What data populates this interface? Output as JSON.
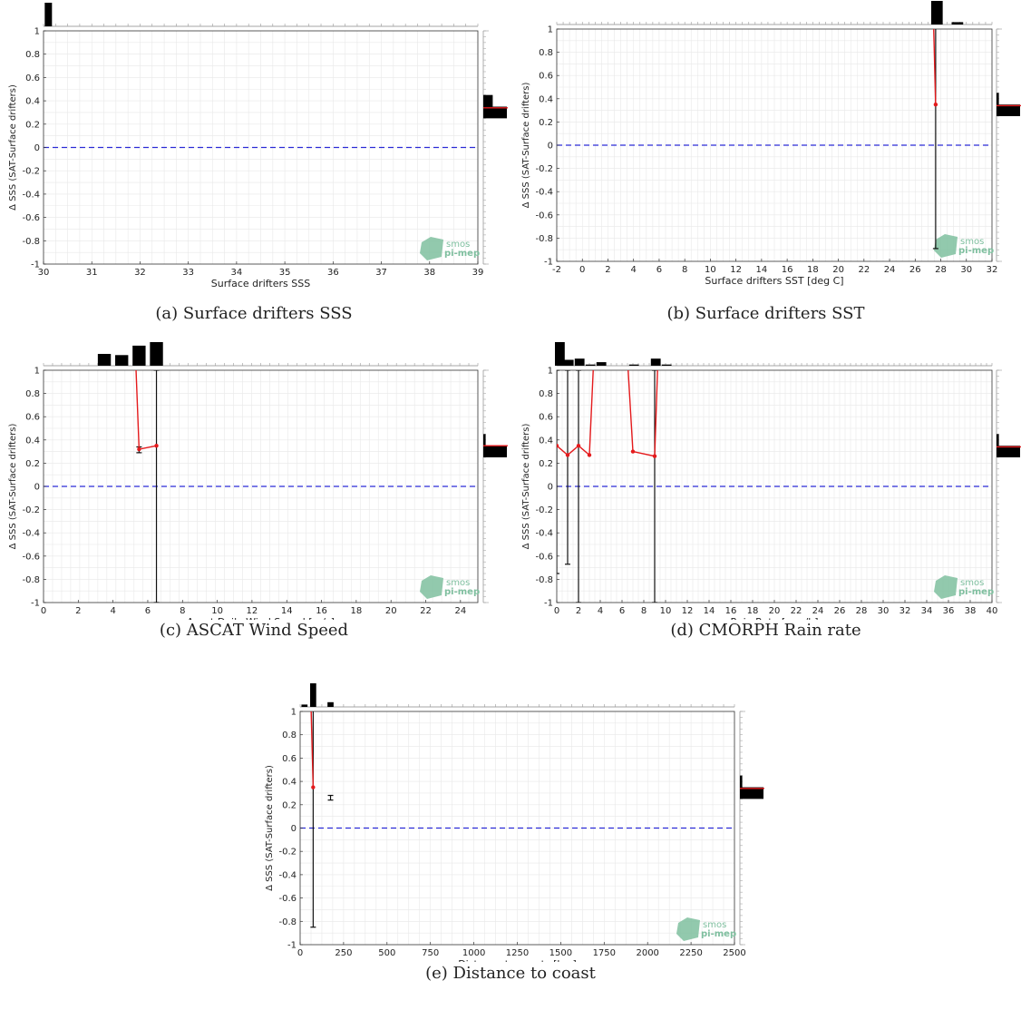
{
  "y_axis_label": "Δ SSS (SAT-Surface drifters)",
  "logo": {
    "line1": "smos",
    "line2": "pi-mep"
  },
  "colors": {
    "mean_line": "#e41a1c",
    "zero_line": "#2b2bd6",
    "errorbar": "#111111",
    "bars": "#000000",
    "grid": "#e8e8e8",
    "logo": "#7fbf9f"
  },
  "captions": [
    "(a) Surface drifters SSS",
    "(b) Surface drifters SST",
    "(c) ASCAT Wind Speed",
    "(d) CMORPH Rain rate",
    "(e) Distance to coast"
  ],
  "chart_data": [
    {
      "id": "a",
      "type": "line",
      "xlabel": "Surface drifters SSS",
      "ylabel": "Δ SSS (SAT-Surface drifters)",
      "xlim": [
        30,
        39
      ],
      "ylim": [
        -1,
        1
      ],
      "xticks": [
        30,
        31,
        32,
        33,
        34,
        35,
        36,
        37,
        38,
        39
      ],
      "yticks": [
        -1,
        -0.8,
        -0.6,
        -0.4,
        -0.2,
        0,
        0.2,
        0.4,
        0.6,
        0.8,
        1
      ],
      "grid": true,
      "zero_line": 0,
      "series": [
        {
          "role": "mean",
          "x": [],
          "y": []
        }
      ],
      "errorbars": [],
      "histogram_top": {
        "x": [
          30.1
        ],
        "height": [
          1.0
        ],
        "width": 0.15
      },
      "histogram_right": [
        {
          "y": 0.4,
          "h": 0.4
        },
        {
          "y": 0.3,
          "h": 1.0
        }
      ],
      "right_mean_line": 0.34
    },
    {
      "id": "b",
      "type": "line",
      "xlabel": "Surface drifters SST [deg C]",
      "ylabel": "Δ SSS (SAT-Surface drifters)",
      "xlim": [
        -2,
        32
      ],
      "ylim": [
        -1,
        1
      ],
      "xticks": [
        -2,
        0,
        2,
        4,
        6,
        8,
        10,
        12,
        14,
        16,
        18,
        20,
        22,
        24,
        26,
        28,
        30,
        32
      ],
      "yticks": [
        -1,
        -0.8,
        -0.6,
        -0.4,
        -0.2,
        0,
        0.2,
        0.4,
        0.6,
        0.8,
        1
      ],
      "grid": true,
      "zero_line": 0,
      "series": [
        {
          "role": "mean",
          "x": [
            27.4,
            27.6
          ],
          "y": [
            1.2,
            0.35
          ]
        }
      ],
      "errorbars": [
        {
          "x": 27.6,
          "low": -0.89,
          "high": 1.2
        }
      ],
      "histogram_top": {
        "x": [
          27.7,
          29.3
        ],
        "height": [
          1.0,
          0.1
        ],
        "width": 0.9
      },
      "histogram_right": [
        {
          "y": 0.4,
          "h": 0.1
        },
        {
          "y": 0.3,
          "h": 1.0
        }
      ],
      "right_mean_line": 0.34
    },
    {
      "id": "c",
      "type": "line",
      "xlabel": "Ascat Daily Wind Speed [m/s]",
      "ylabel": "Δ SSS (SAT-Surface drifters)",
      "xlim": [
        0,
        25
      ],
      "ylim": [
        -1,
        1
      ],
      "xticks": [
        0,
        2,
        4,
        6,
        8,
        10,
        12,
        14,
        16,
        18,
        20,
        22,
        24
      ],
      "yticks": [
        -1,
        -0.8,
        -0.6,
        -0.4,
        -0.2,
        0,
        0.2,
        0.4,
        0.6,
        0.8,
        1
      ],
      "grid": true,
      "zero_line": 0,
      "series": [
        {
          "role": "mean",
          "x": [
            5.3,
            5.5,
            6.5
          ],
          "y": [
            1.1,
            0.32,
            0.35
          ]
        }
      ],
      "errorbars": [
        {
          "x": 5.5,
          "low": 0.29,
          "high": 0.34
        },
        {
          "x": 6.5,
          "low": -1.0,
          "high": 1.0
        }
      ],
      "histogram_top": {
        "x": [
          3.5,
          4.5,
          5.5,
          6.5
        ],
        "height": [
          0.5,
          0.45,
          0.85,
          1.0
        ],
        "width": 0.75
      },
      "histogram_right": [
        {
          "y": 0.4,
          "h": 0.1
        },
        {
          "y": 0.3,
          "h": 1.0
        }
      ],
      "right_mean_line": 0.35
    },
    {
      "id": "d",
      "type": "line",
      "xlabel": "Rain Rate [mm/h]",
      "ylabel": "Δ SSS (SAT-Surface drifters)",
      "xlim": [
        0,
        40
      ],
      "ylim": [
        -1,
        1
      ],
      "xticks": [
        0,
        2,
        4,
        6,
        8,
        10,
        12,
        14,
        16,
        18,
        20,
        22,
        24,
        26,
        28,
        30,
        32,
        34,
        36,
        38,
        40
      ],
      "yticks": [
        -1,
        -0.8,
        -0.6,
        -0.4,
        -0.2,
        0,
        0.2,
        0.4,
        0.6,
        0.8,
        1
      ],
      "grid": true,
      "zero_line": 0,
      "series": [
        {
          "role": "mean",
          "x": [
            0,
            1,
            2,
            3,
            3.4
          ],
          "y": [
            0.35,
            0.27,
            0.35,
            0.27,
            1.1
          ]
        },
        {
          "role": "mean",
          "x": [
            6.5,
            7,
            9,
            9.3
          ],
          "y": [
            1.1,
            0.3,
            0.26,
            1.1
          ]
        }
      ],
      "errorbars": [
        {
          "x": 0,
          "low": -0.75,
          "high": 1.0
        },
        {
          "x": 1,
          "low": -0.67,
          "high": 1.0
        },
        {
          "x": 2,
          "low": -1.0,
          "high": 1.0
        },
        {
          "x": 9,
          "low": -1.0,
          "high": 1.0
        }
      ],
      "histogram_top": {
        "x": [
          0.1,
          1.1,
          2.1,
          3.1,
          4.1,
          7.1,
          9.1,
          10.1
        ],
        "height": [
          1.0,
          0.25,
          0.3,
          0.05,
          0.15,
          0.05,
          0.3,
          0.05
        ],
        "width": 0.9
      },
      "histogram_right": [
        {
          "y": 0.4,
          "h": 0.1
        },
        {
          "y": 0.3,
          "h": 1.0
        }
      ],
      "right_mean_line": 0.34
    },
    {
      "id": "e",
      "type": "line",
      "xlabel": "Distance to coasts [km]",
      "ylabel": "Δ SSS (SAT-Surface drifters)",
      "xlim": [
        0,
        2500
      ],
      "ylim": [
        -1,
        1
      ],
      "xticks": [
        0,
        250,
        500,
        750,
        1000,
        1250,
        1500,
        1750,
        2000,
        2250,
        2500
      ],
      "yticks": [
        -1,
        -0.8,
        -0.6,
        -0.4,
        -0.2,
        0,
        0.2,
        0.4,
        0.6,
        0.8,
        1
      ],
      "grid": true,
      "zero_line": 0,
      "series": [
        {
          "role": "mean",
          "x": [
            60,
            75
          ],
          "y": [
            1.2,
            0.35
          ]
        }
      ],
      "errorbars": [
        {
          "x": 75,
          "low": -0.85,
          "high": 1.2
        },
        {
          "x": 175,
          "low": 0.24,
          "high": 0.28
        }
      ],
      "histogram_top": {
        "x": [
          25,
          75,
          175
        ],
        "height": [
          0.1,
          1.0,
          0.2
        ],
        "width": 35
      },
      "histogram_right": [
        {
          "y": 0.4,
          "h": 0.1
        },
        {
          "y": 0.3,
          "h": 1.0
        }
      ],
      "right_mean_line": 0.34
    }
  ]
}
